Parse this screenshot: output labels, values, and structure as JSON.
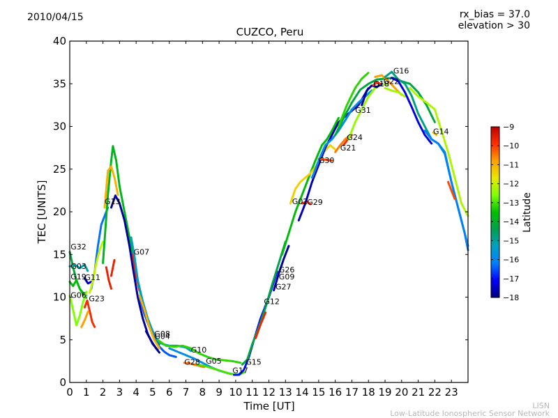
{
  "header": {
    "date": "2010/04/15",
    "rx_bias": "rx_bias = 37.0",
    "elevation": "elevation > 30"
  },
  "footer": {
    "short_name": "LISN",
    "long_name": "Low-Latitude Ionospheric Sensor Network"
  },
  "colors": {
    "axis": "#000000",
    "watermark": "#b8b8b8",
    "colormap": [
      "#00007f",
      "#0000ff",
      "#007fff",
      "#00a0c0",
      "#00a050",
      "#00c000",
      "#7fff00",
      "#e8e800",
      "#ffa000",
      "#ff3000",
      "#bf0000"
    ]
  },
  "chart_data": {
    "type": "scatter",
    "title": "CUZCO, Peru",
    "xlabel": "Time [UT]",
    "ylabel": "TEC [UNITS]",
    "xlim": [
      0,
      24
    ],
    "ylim": [
      0,
      40
    ],
    "xticks": [
      "0",
      "1",
      "2",
      "3",
      "4",
      "5",
      "6",
      "7",
      "8",
      "9",
      "10",
      "11",
      "12",
      "13",
      "14",
      "15",
      "16",
      "17",
      "18",
      "19",
      "20",
      "21",
      "22",
      "23"
    ],
    "yticks": [
      "0",
      "5",
      "10",
      "15",
      "20",
      "25",
      "30",
      "35",
      "40"
    ],
    "grid": false,
    "colorbar": {
      "label": "Latitude",
      "range": [
        -18,
        -9
      ],
      "ticks": [
        "-9",
        "-10",
        "-11",
        "-12",
        "-13",
        "-14",
        "-15",
        "-16",
        "-17",
        "-18"
      ]
    },
    "satellite_labels": [
      {
        "text": "G32",
        "x": 0.05,
        "y": 15.6
      },
      {
        "text": "G03",
        "x": 0.05,
        "y": 13.3
      },
      {
        "text": "G19",
        "x": 0.05,
        "y": 12.1
      },
      {
        "text": "G11",
        "x": 0.9,
        "y": 12.0
      },
      {
        "text": "G06",
        "x": 0.05,
        "y": 9.9
      },
      {
        "text": "G23",
        "x": 1.15,
        "y": 9.5
      },
      {
        "text": "G13",
        "x": 2.1,
        "y": 20.9
      },
      {
        "text": "G07",
        "x": 3.85,
        "y": 15.0
      },
      {
        "text": "G08",
        "x": 5.1,
        "y": 5.4
      },
      {
        "text": "G04",
        "x": 5.1,
        "y": 5.1
      },
      {
        "text": "G10",
        "x": 7.3,
        "y": 3.5
      },
      {
        "text": "G28",
        "x": 6.9,
        "y": 2.1
      },
      {
        "text": "G05",
        "x": 8.2,
        "y": 2.2
      },
      {
        "text": "G17",
        "x": 9.8,
        "y": 1.1
      },
      {
        "text": "G15",
        "x": 10.6,
        "y": 2.1
      },
      {
        "text": "G12",
        "x": 11.7,
        "y": 9.2
      },
      {
        "text": "G27",
        "x": 12.4,
        "y": 10.9
      },
      {
        "text": "G09",
        "x": 12.6,
        "y": 12.1
      },
      {
        "text": "G26",
        "x": 12.6,
        "y": 12.9
      },
      {
        "text": "G02",
        "x": 13.4,
        "y": 20.9
      },
      {
        "text": "G29",
        "x": 14.3,
        "y": 20.8
      },
      {
        "text": "G30",
        "x": 15.0,
        "y": 25.7
      },
      {
        "text": "G21",
        "x": 16.3,
        "y": 27.2
      },
      {
        "text": "G24",
        "x": 16.7,
        "y": 28.4
      },
      {
        "text": "G31",
        "x": 17.2,
        "y": 31.6
      },
      {
        "text": "G18",
        "x": 18.3,
        "y": 34.7
      },
      {
        "text": "G22",
        "x": 18.9,
        "y": 35.0
      },
      {
        "text": "G16",
        "x": 19.5,
        "y": 36.2
      },
      {
        "text": "G14",
        "x": 21.9,
        "y": 29.1
      }
    ],
    "series": [
      {
        "name": "G32",
        "lat": -14.2,
        "x": [
          0.0,
          0.2,
          0.4,
          0.6,
          0.8,
          1.0
        ],
        "y": [
          15.3,
          13.5,
          12.0,
          11.0,
          10.5,
          10.2
        ]
      },
      {
        "name": "G03",
        "lat": -15.2,
        "x": [
          0.0,
          0.3,
          0.6,
          0.9,
          1.1
        ],
        "y": [
          13.6,
          13.8,
          13.4,
          13.8,
          13.0
        ]
      },
      {
        "name": "G19",
        "lat": -13.6,
        "x": [
          0.0,
          0.2,
          0.4,
          0.6,
          0.8,
          1.0
        ],
        "y": [
          11.8,
          11.3,
          12.0,
          11.0,
          10.3,
          9.9
        ]
      },
      {
        "name": "G06",
        "lat": -12.6,
        "x": [
          0.0,
          0.2,
          0.4,
          0.6,
          0.8,
          1.0
        ],
        "y": [
          10.2,
          8.5,
          6.7,
          7.8,
          9.4,
          10.6
        ]
      },
      {
        "name": "G11",
        "lat": -17.6,
        "x": [
          0.9,
          1.1,
          1.3
        ],
        "y": [
          12.2,
          11.6,
          11.8
        ]
      },
      {
        "name": "G23",
        "lat": -9.8,
        "x": [
          0.9,
          1.05,
          1.2,
          1.35,
          1.5
        ],
        "y": [
          8.8,
          9.6,
          8.4,
          7.1,
          6.5
        ]
      },
      {
        "name": "G23b",
        "lat": -10.8,
        "x": [
          0.7,
          0.9,
          1.1
        ],
        "y": [
          6.5,
          7.3,
          8.3
        ]
      },
      {
        "name": "arc-cyan",
        "lat": -16.3,
        "x": [
          1.3,
          1.5,
          1.7,
          1.9,
          2.1,
          2.3
        ],
        "y": [
          11.0,
          13.0,
          16.0,
          18.5,
          19.5,
          20.5
        ]
      },
      {
        "name": "arc-yellow",
        "lat": -12.0,
        "x": [
          1.2,
          1.4,
          1.6,
          1.8,
          2.0
        ],
        "y": [
          10.5,
          12.0,
          14.0,
          15.5,
          16.5
        ]
      },
      {
        "name": "arc-red",
        "lat": -9.6,
        "x": [
          2.2,
          2.35,
          2.5
        ],
        "y": [
          13.5,
          12.0,
          11.0
        ]
      },
      {
        "name": "arc-red2",
        "lat": -9.6,
        "x": [
          2.5,
          2.6,
          2.7
        ],
        "y": [
          12.5,
          13.5,
          14.4
        ]
      },
      {
        "name": "peak-green",
        "lat": -13.8,
        "x": [
          2.0,
          2.3,
          2.5,
          2.6,
          2.8,
          3.0,
          3.3,
          3.6,
          3.9,
          4.2,
          4.5,
          4.8,
          5.1,
          5.4
        ],
        "y": [
          14.0,
          22.0,
          26.0,
          27.7,
          26.0,
          23.0,
          20.0,
          17.0,
          14.0,
          11.0,
          8.5,
          6.5,
          5.0,
          4.5
        ]
      },
      {
        "name": "peak-orange",
        "lat": -11.0,
        "x": [
          2.1,
          2.3,
          2.5,
          2.7,
          2.9
        ],
        "y": [
          20.5,
          24.8,
          25.3,
          24.0,
          22.0
        ]
      },
      {
        "name": "G13",
        "lat": -17.8,
        "x": [
          2.5,
          2.75,
          3.0,
          3.3,
          3.6,
          3.8,
          4.1,
          4.4,
          4.7,
          5.0,
          5.3
        ],
        "y": [
          20.5,
          21.9,
          21.0,
          19.0,
          16.0,
          13.5,
          10.0,
          7.5,
          5.7,
          4.5,
          3.8
        ]
      },
      {
        "name": "G07",
        "lat": -9.6,
        "x": [
          3.8,
          4.0,
          4.2
        ],
        "y": [
          15.0,
          12.5,
          10.8
        ]
      },
      {
        "name": "G07b",
        "lat": -15.3,
        "x": [
          3.7,
          3.9,
          4.1,
          4.4,
          4.7,
          5.0,
          5.3,
          5.6,
          6.0,
          6.5,
          7.0,
          7.3
        ],
        "y": [
          17.0,
          14.8,
          12.0,
          9.5,
          7.5,
          6.0,
          4.9,
          4.5,
          4.3,
          4.3,
          4.1,
          3.7
        ]
      },
      {
        "name": "G04",
        "lat": -16.5,
        "x": [
          4.2,
          4.5,
          4.8,
          5.1,
          5.4,
          5.7,
          6.0,
          6.4
        ],
        "y": [
          10.0,
          8.0,
          6.5,
          5.1,
          4.2,
          3.6,
          3.2,
          3.0
        ]
      },
      {
        "name": "G08",
        "lat": -11.0,
        "x": [
          4.2,
          4.5,
          4.8,
          5.1,
          5.4
        ],
        "y": [
          10.2,
          8.5,
          6.5,
          5.0,
          4.0
        ]
      },
      {
        "name": "G08b",
        "lat": -17.9,
        "x": [
          4.6,
          4.9,
          5.2,
          5.4
        ],
        "y": [
          6.0,
          4.9,
          4.0,
          3.5
        ]
      },
      {
        "name": "G10",
        "lat": -13.2,
        "x": [
          5.3,
          5.8,
          6.3,
          6.8,
          7.3,
          7.8,
          8.3,
          8.8,
          9.3,
          9.8,
          10.3
        ],
        "y": [
          5.0,
          4.3,
          4.2,
          4.3,
          4.0,
          3.4,
          3.0,
          2.7,
          2.6,
          2.5,
          2.3
        ]
      },
      {
        "name": "G05",
        "lat": -15.8,
        "x": [
          6.0,
          6.5,
          7.0,
          7.5,
          8.0,
          8.5,
          9.0,
          9.5,
          10.0,
          10.3
        ],
        "y": [
          4.0,
          3.6,
          3.2,
          2.8,
          2.3,
          1.8,
          1.4,
          1.1,
          0.9,
          1.0
        ]
      },
      {
        "name": "G28",
        "lat": -10.5,
        "x": [
          6.9,
          7.3,
          7.7,
          8.1
        ],
        "y": [
          2.3,
          2.2,
          2.0,
          1.8
        ]
      },
      {
        "name": "G28b",
        "lat": -13.0,
        "x": [
          7.7,
          8.2,
          8.7,
          9.2,
          9.7,
          10.2,
          10.5
        ],
        "y": [
          2.1,
          1.9,
          1.6,
          1.3,
          1.0,
          0.9,
          1.2
        ]
      },
      {
        "name": "G17",
        "lat": -17.0,
        "x": [
          9.9,
          10.2,
          10.5,
          10.8,
          11.1,
          11.5,
          12.0,
          12.5
        ],
        "y": [
          0.9,
          0.9,
          1.5,
          3.0,
          5.0,
          7.5,
          10.0,
          13.0
        ]
      },
      {
        "name": "G15",
        "lat": -14.3,
        "x": [
          10.4,
          10.7,
          11.0,
          11.4,
          11.8,
          12.2,
          12.6,
          13.0
        ],
        "y": [
          2.1,
          2.7,
          4.5,
          6.5,
          8.8,
          11.5,
          14.0,
          16.5
        ]
      },
      {
        "name": "G12",
        "lat": -9.7,
        "x": [
          11.2,
          11.5,
          11.8
        ],
        "y": [
          5.2,
          6.8,
          8.2
        ]
      },
      {
        "name": "G27",
        "lat": -17.8,
        "x": [
          12.3,
          12.6,
          12.9,
          13.2
        ],
        "y": [
          10.8,
          12.8,
          14.5,
          16.0
        ]
      },
      {
        "name": "rise-green",
        "lat": -13.6,
        "x": [
          12.8,
          13.2,
          13.6,
          14.0,
          14.4,
          14.8,
          15.2,
          15.5,
          15.8,
          16.2
        ],
        "y": [
          15.0,
          17.5,
          20.0,
          22.0,
          24.0,
          26.0,
          27.8,
          28.5,
          29.5,
          31.0
        ]
      },
      {
        "name": "G02",
        "lat": -11.4,
        "x": [
          13.3,
          13.6,
          13.9,
          14.2,
          14.5,
          14.9,
          15.3,
          15.7,
          16.0
        ],
        "y": [
          21.0,
          22.7,
          23.5,
          24.0,
          24.5,
          25.5,
          27.0,
          27.8,
          27.3
        ]
      },
      {
        "name": "G29",
        "lat": -9.7,
        "x": [
          14.0,
          14.3,
          14.5
        ],
        "y": [
          21.0,
          21.2,
          20.9
        ]
      },
      {
        "name": "G30",
        "lat": -17.6,
        "x": [
          13.8,
          14.2,
          14.6,
          15.0,
          15.4,
          15.8,
          16.2,
          16.8,
          17.4,
          18.0
        ],
        "y": [
          19.0,
          21.0,
          23.5,
          25.5,
          27.5,
          29.0,
          30.5,
          31.5,
          32.5,
          34.5
        ]
      },
      {
        "name": "G30b",
        "lat": -10.1,
        "x": [
          15.0,
          15.4,
          15.8
        ],
        "y": [
          26.2,
          26.1,
          26.0
        ]
      },
      {
        "name": "G21",
        "lat": -10.5,
        "x": [
          16.0,
          16.3,
          16.6,
          16.9
        ],
        "y": [
          27.0,
          27.8,
          28.5,
          29.0
        ]
      },
      {
        "name": "G24",
        "lat": -9.8,
        "x": [
          16.5,
          16.8,
          17.0
        ],
        "y": [
          27.8,
          28.6,
          29.0
        ]
      },
      {
        "name": "steep-teal",
        "lat": -15.8,
        "x": [
          14.6,
          15.0,
          15.4,
          15.8,
          16.2,
          16.6,
          17.0,
          17.4,
          17.8,
          18.2
        ],
        "y": [
          24.0,
          26.0,
          27.8,
          28.5,
          29.5,
          30.7,
          32.0,
          32.8,
          33.5,
          34.2
        ]
      },
      {
        "name": "G31",
        "lat": -12.4,
        "x": [
          16.8,
          17.2,
          17.6,
          18.0,
          18.4,
          18.8,
          19.2
        ],
        "y": [
          28.5,
          30.5,
          32.0,
          33.5,
          34.5,
          35.0,
          34.8
        ]
      },
      {
        "name": "arc-green-top",
        "lat": -14.2,
        "x": [
          16.0,
          16.5,
          17.0,
          17.5,
          18.0,
          18.5,
          19.0,
          19.5,
          20.0,
          20.5,
          21.0,
          21.5,
          22.0
        ],
        "y": [
          29.0,
          31.0,
          32.8,
          34.3,
          35.0,
          35.5,
          35.6,
          35.7,
          35.3,
          35.0,
          34.0,
          32.5,
          30.5
        ]
      },
      {
        "name": "arc-lime-top",
        "lat": -13.2,
        "x": [
          16.2,
          16.7,
          17.2,
          17.6,
          18.0
        ],
        "y": [
          30.0,
          32.5,
          34.5,
          35.6,
          36.3
        ]
      },
      {
        "name": "G18",
        "lat": -17.8,
        "x": [
          17.6,
          17.9,
          18.2,
          18.5,
          18.8
        ],
        "y": [
          32.5,
          34.2,
          34.8,
          34.6,
          35.0
        ]
      },
      {
        "name": "G18b",
        "lat": -9.8,
        "x": [
          18.3,
          18.5,
          18.7
        ],
        "y": [
          34.8,
          35.2,
          35.0
        ]
      },
      {
        "name": "G22",
        "lat": -10.8,
        "x": [
          18.4,
          18.8,
          19.2,
          19.6,
          20.0
        ],
        "y": [
          35.8,
          36.0,
          35.3,
          34.5,
          33.7
        ]
      },
      {
        "name": "G22b",
        "lat": -12.3,
        "x": [
          19.0,
          19.4,
          19.8,
          20.2
        ],
        "y": [
          34.5,
          34.2,
          34.0,
          33.5
        ]
      },
      {
        "name": "G16",
        "lat": -14.8,
        "x": [
          19.0,
          19.4,
          19.8,
          20.2,
          20.6,
          21.0,
          21.4,
          21.8,
          22.2,
          22.6,
          23.0,
          23.4,
          24.0
        ],
        "y": [
          35.8,
          36.4,
          35.5,
          35.0,
          33.6,
          31.5,
          30.0,
          28.5,
          28.0,
          27.0,
          23.5,
          20.5,
          16.0
        ]
      },
      {
        "name": "G16b",
        "lat": -17.3,
        "x": [
          19.4,
          19.8,
          20.2,
          20.6,
          21.0,
          21.4,
          21.8
        ],
        "y": [
          35.7,
          35.3,
          34.0,
          32.3,
          30.5,
          29.0,
          28.0
        ]
      },
      {
        "name": "G14",
        "lat": -12.2,
        "x": [
          20.5,
          21.0,
          21.5,
          22.0,
          22.4,
          22.8,
          23.2,
          23.6,
          24.0
        ],
        "y": [
          34.5,
          33.5,
          32.8,
          32.0,
          29.5,
          27.0,
          24.0,
          21.0,
          19.5
        ]
      },
      {
        "name": "G14b",
        "lat": -16.2,
        "x": [
          21.4,
          21.8,
          22.2,
          22.6,
          23.0,
          23.4,
          23.8,
          24.0
        ],
        "y": [
          29.5,
          28.5,
          28.0,
          26.8,
          23.5,
          20.5,
          17.5,
          15.5
        ]
      },
      {
        "name": "G14c",
        "lat": -10.1,
        "x": [
          22.8,
          23.0,
          23.2
        ],
        "y": [
          23.5,
          22.5,
          21.5
        ]
      },
      {
        "name": "G14d",
        "lat": -11.2,
        "x": [
          21.9,
          22.1
        ],
        "y": [
          29.3,
          29.0
        ]
      }
    ]
  }
}
